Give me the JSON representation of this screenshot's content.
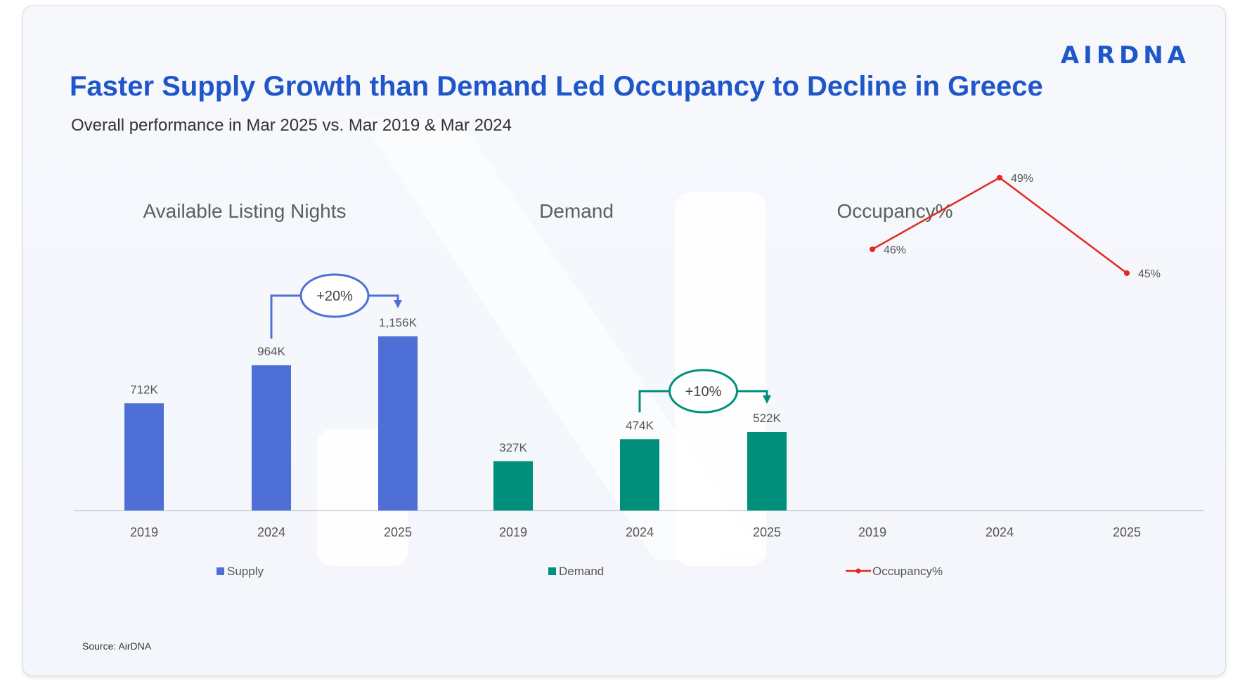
{
  "header": {
    "brand": "AIRDNA",
    "title": "Faster Supply Growth than Demand Led Occupancy to Decline in Greece",
    "subtitle": "Overall performance in Mar 2025 vs. Mar 2019 & Mar 2024"
  },
  "footer": {
    "source": "Source: AirDNA"
  },
  "colors": {
    "supply": "#4e6fd6",
    "demand": "#008f7a",
    "occupancy": "#e32a1a",
    "title": "#1f56c9"
  },
  "chart_data": [
    {
      "type": "bar",
      "title": "Available Listing Nights",
      "categories": [
        "2019",
        "2024",
        "2025"
      ],
      "series": [
        {
          "name": "Supply",
          "values": [
            712000,
            964000,
            1156000
          ],
          "labels": [
            "712K",
            "964K",
            "1,156K"
          ]
        }
      ],
      "annotation": {
        "from": "2024",
        "to": "2025",
        "text": "+20%"
      },
      "legend": "bottom"
    },
    {
      "type": "bar",
      "title": "Demand",
      "categories": [
        "2019",
        "2024",
        "2025"
      ],
      "series": [
        {
          "name": "Demand",
          "values": [
            327000,
            474000,
            522000
          ],
          "labels": [
            "327K",
            "474K",
            "522K"
          ]
        }
      ],
      "annotation": {
        "from": "2024",
        "to": "2025",
        "text": "+10%"
      },
      "legend": "bottom"
    },
    {
      "type": "line",
      "title": "Occupancy%",
      "categories": [
        "2019",
        "2024",
        "2025"
      ],
      "series": [
        {
          "name": "Occupancy%",
          "values": [
            46,
            49,
            45
          ],
          "labels": [
            "46%",
            "49%",
            "45%"
          ]
        }
      ],
      "legend": "bottom"
    }
  ]
}
